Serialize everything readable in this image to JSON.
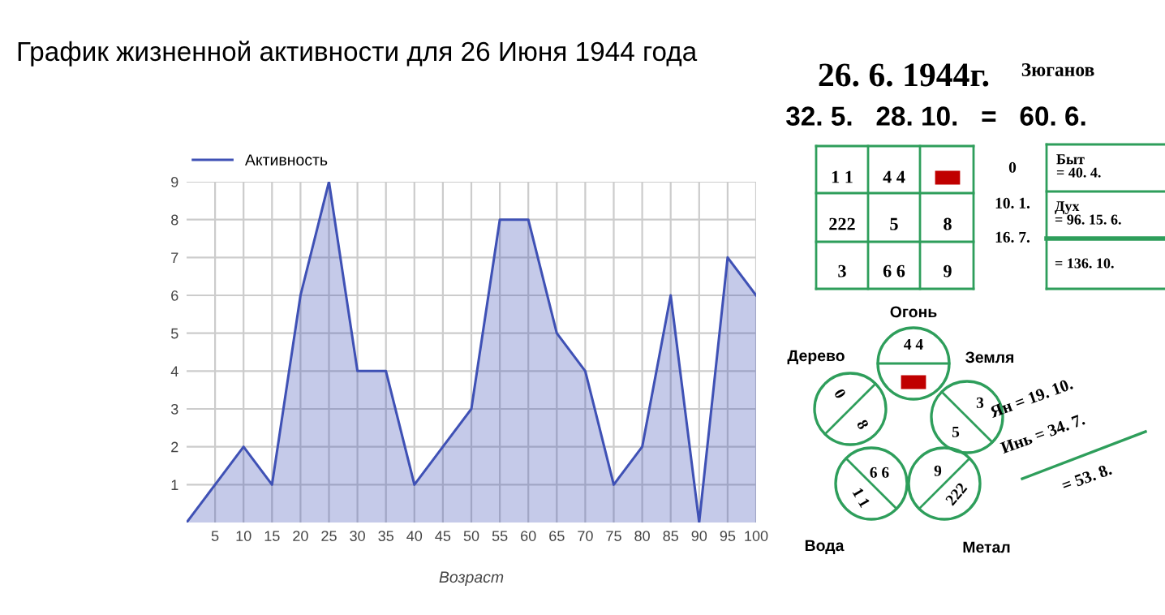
{
  "chart_data": [
    {
      "type": "area",
      "title": "График жизненной активности для 26 Июня 1944 года",
      "xlabel": "Возраст",
      "x": [
        0,
        5,
        10,
        15,
        20,
        25,
        30,
        35,
        40,
        45,
        50,
        55,
        60,
        65,
        70,
        75,
        80,
        85,
        90,
        95,
        100
      ],
      "series": [
        {
          "name": "Активность",
          "color": "#3f51b5",
          "values": [
            0,
            1,
            2,
            1,
            6,
            9,
            4,
            4,
            1,
            2,
            3,
            8,
            8,
            5,
            4,
            1,
            2,
            6,
            0,
            7,
            6
          ]
        }
      ],
      "xlim": [
        0,
        100
      ],
      "xticks": [
        5,
        10,
        15,
        20,
        25,
        30,
        35,
        40,
        45,
        50,
        55,
        60,
        65,
        70,
        75,
        80,
        85,
        90,
        95,
        100
      ],
      "ylim": [
        0,
        9
      ],
      "yticks": [
        1,
        2,
        3,
        4,
        5,
        6,
        7,
        8,
        9
      ],
      "grid": true,
      "legend": "top left"
    },
    {
      "type": "other",
      "annotations": [
        "26. 6. 1944г.",
        "Зюганов",
        "32. 5.   28. 10.   =   60. 6.",
        "1 1",
        "4 4",
        "222",
        "5",
        "8",
        "3",
        "6 6",
        "9",
        "0",
        "10. 1.",
        "16. 7.",
        "Быт\n= 40. 4.",
        "Дух\n= 96. 15. 6.",
        "= 136. 10.",
        "Огонь",
        "Дерево",
        "Земля",
        "Вода",
        "Метал",
        "4 4",
        "0",
        "8",
        "3",
        "5",
        "6 6",
        "1 1",
        "9",
        "222",
        "Ян = 19. 10.",
        "Инь = 34. 7.",
        "= 53. 8."
      ]
    }
  ]
}
